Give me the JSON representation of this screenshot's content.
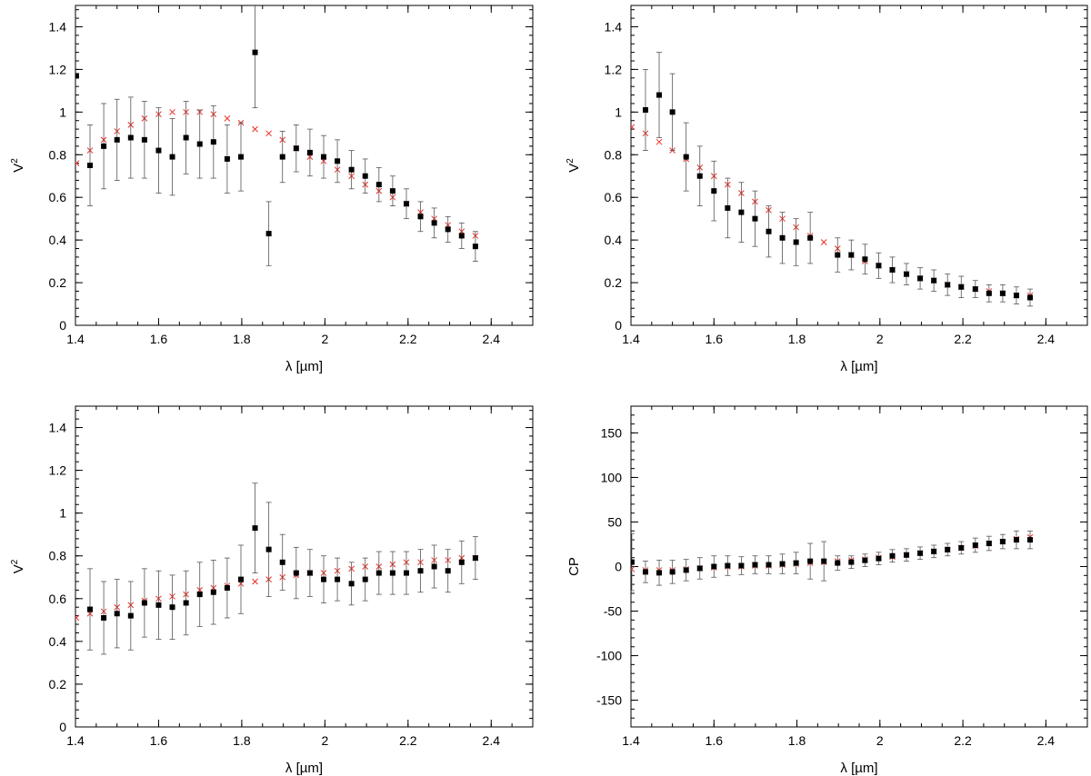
{
  "chart_data": [
    {
      "type": "scatter",
      "xlabel": "λ [µm]",
      "ylabel": "V",
      "ylabel_sup": "2",
      "xlim": [
        1.4,
        2.5
      ],
      "ylim": [
        0,
        1.5
      ],
      "xticks": [
        1.4,
        1.6,
        1.8,
        2,
        2.2,
        2.4
      ],
      "yticks": [
        0,
        0.2,
        0.4,
        0.6,
        0.8,
        1,
        1.2,
        1.4
      ],
      "grid": false,
      "series": [
        {
          "marker": "square",
          "color": "#000000",
          "x": [
            1.402,
            1.435,
            1.468,
            1.5,
            1.533,
            1.566,
            1.6,
            1.633,
            1.666,
            1.699,
            1.732,
            1.765,
            1.798,
            1.832,
            1.865,
            1.898,
            1.931,
            1.964,
            1.997,
            2.03,
            2.064,
            2.097,
            2.13,
            2.163,
            2.196,
            2.23,
            2.263,
            2.296,
            2.329,
            2.362
          ],
          "y": [
            1.17,
            0.75,
            0.84,
            0.87,
            0.88,
            0.87,
            0.82,
            0.79,
            0.88,
            0.85,
            0.86,
            0.78,
            0.79,
            1.28,
            0.43,
            0.79,
            0.83,
            0.81,
            0.79,
            0.77,
            0.73,
            0.7,
            0.66,
            0.63,
            0.57,
            0.51,
            0.48,
            0.45,
            0.42,
            0.37
          ],
          "err": [
            0.0,
            0.19,
            0.2,
            0.19,
            0.19,
            0.18,
            0.2,
            0.18,
            0.17,
            0.16,
            0.17,
            0.16,
            0.16,
            0.26,
            0.15,
            0.12,
            0.11,
            0.11,
            0.1,
            0.1,
            0.09,
            0.08,
            0.08,
            0.07,
            0.07,
            0.07,
            0.07,
            0.06,
            0.06,
            0.07
          ]
        },
        {
          "marker": "cross",
          "color": "#e8302a",
          "x": [
            1.402,
            1.435,
            1.468,
            1.5,
            1.533,
            1.566,
            1.6,
            1.633,
            1.666,
            1.699,
            1.732,
            1.765,
            1.798,
            1.832,
            1.865,
            1.898,
            1.931,
            1.964,
            1.997,
            2.03,
            2.064,
            2.097,
            2.13,
            2.163,
            2.196,
            2.23,
            2.263,
            2.296,
            2.329,
            2.362
          ],
          "y": [
            0.76,
            0.82,
            0.87,
            0.91,
            0.94,
            0.97,
            0.99,
            1.0,
            1.0,
            1.0,
            0.99,
            0.97,
            0.95,
            0.92,
            0.9,
            0.87,
            0.83,
            0.79,
            0.77,
            0.73,
            0.7,
            0.66,
            0.63,
            0.6,
            0.57,
            0.53,
            0.5,
            0.47,
            0.44,
            0.42
          ]
        }
      ]
    },
    {
      "type": "scatter",
      "xlabel": "λ [µm]",
      "ylabel": "V",
      "ylabel_sup": "2",
      "xlim": [
        1.4,
        2.5
      ],
      "ylim": [
        0,
        1.5
      ],
      "xticks": [
        1.4,
        1.6,
        1.8,
        2,
        2.2,
        2.4
      ],
      "yticks": [
        0,
        0.2,
        0.4,
        0.6,
        0.8,
        1,
        1.2,
        1.4
      ],
      "grid": false,
      "series": [
        {
          "marker": "square",
          "color": "#000000",
          "x": [
            1.435,
            1.468,
            1.5,
            1.533,
            1.566,
            1.6,
            1.633,
            1.666,
            1.699,
            1.732,
            1.765,
            1.798,
            1.832,
            1.898,
            1.931,
            1.964,
            1.997,
            2.03,
            2.064,
            2.097,
            2.13,
            2.163,
            2.196,
            2.23,
            2.263,
            2.296,
            2.329,
            2.362
          ],
          "y": [
            1.01,
            1.08,
            1.0,
            0.79,
            0.7,
            0.63,
            0.55,
            0.53,
            0.5,
            0.44,
            0.41,
            0.39,
            0.41,
            0.33,
            0.33,
            0.31,
            0.28,
            0.26,
            0.24,
            0.22,
            0.21,
            0.19,
            0.18,
            0.17,
            0.15,
            0.15,
            0.14,
            0.13
          ],
          "err": [
            0.19,
            0.2,
            0.18,
            0.16,
            0.14,
            0.14,
            0.14,
            0.14,
            0.13,
            0.12,
            0.12,
            0.11,
            0.12,
            0.08,
            0.07,
            0.07,
            0.06,
            0.06,
            0.05,
            0.05,
            0.05,
            0.05,
            0.05,
            0.04,
            0.04,
            0.04,
            0.04,
            0.04
          ]
        },
        {
          "marker": "cross",
          "color": "#e8302a",
          "x": [
            1.402,
            1.435,
            1.468,
            1.5,
            1.533,
            1.566,
            1.6,
            1.633,
            1.666,
            1.699,
            1.732,
            1.765,
            1.798,
            1.832,
            1.865,
            1.898,
            1.931,
            1.964,
            1.997,
            2.03,
            2.064,
            2.097,
            2.13,
            2.163,
            2.196,
            2.23,
            2.263,
            2.296,
            2.329,
            2.362
          ],
          "y": [
            0.93,
            0.9,
            0.86,
            0.82,
            0.78,
            0.74,
            0.7,
            0.66,
            0.62,
            0.58,
            0.54,
            0.5,
            0.46,
            0.42,
            0.39,
            0.36,
            0.33,
            0.3,
            0.28,
            0.26,
            0.24,
            0.22,
            0.21,
            0.19,
            0.18,
            0.17,
            0.16,
            0.15,
            0.14,
            0.14
          ]
        }
      ]
    },
    {
      "type": "scatter",
      "xlabel": "λ [µm]",
      "ylabel": "V",
      "ylabel_sup": "2",
      "xlim": [
        1.4,
        2.5
      ],
      "ylim": [
        0,
        1.5
      ],
      "xticks": [
        1.4,
        1.6,
        1.8,
        2,
        2.2,
        2.4
      ],
      "yticks": [
        0,
        0.2,
        0.4,
        0.6,
        0.8,
        1,
        1.2,
        1.4
      ],
      "grid": false,
      "series": [
        {
          "marker": "square",
          "color": "#000000",
          "x": [
            1.435,
            1.468,
            1.5,
            1.533,
            1.566,
            1.6,
            1.633,
            1.666,
            1.699,
            1.732,
            1.765,
            1.798,
            1.832,
            1.865,
            1.898,
            1.931,
            1.964,
            1.997,
            2.03,
            2.064,
            2.097,
            2.13,
            2.163,
            2.196,
            2.23,
            2.263,
            2.296,
            2.329,
            2.362
          ],
          "y": [
            0.55,
            0.51,
            0.53,
            0.52,
            0.58,
            0.57,
            0.56,
            0.58,
            0.62,
            0.63,
            0.65,
            0.69,
            0.93,
            0.83,
            0.77,
            0.72,
            0.72,
            0.69,
            0.69,
            0.67,
            0.69,
            0.72,
            0.72,
            0.72,
            0.73,
            0.75,
            0.73,
            0.77,
            0.79
          ],
          "err": [
            0.19,
            0.17,
            0.16,
            0.16,
            0.16,
            0.16,
            0.15,
            0.15,
            0.15,
            0.15,
            0.14,
            0.16,
            0.21,
            0.22,
            0.13,
            0.12,
            0.11,
            0.11,
            0.1,
            0.1,
            0.1,
            0.1,
            0.1,
            0.1,
            0.1,
            0.1,
            0.1,
            0.1,
            0.1
          ]
        },
        {
          "marker": "cross",
          "color": "#e8302a",
          "x": [
            1.402,
            1.435,
            1.468,
            1.5,
            1.533,
            1.566,
            1.6,
            1.633,
            1.666,
            1.699,
            1.732,
            1.765,
            1.798,
            1.832,
            1.865,
            1.898,
            1.931,
            1.964,
            1.997,
            2.03,
            2.064,
            2.097,
            2.13,
            2.163,
            2.196,
            2.23,
            2.263,
            2.296,
            2.329,
            2.362
          ],
          "y": [
            0.51,
            0.53,
            0.54,
            0.56,
            0.57,
            0.59,
            0.6,
            0.61,
            0.62,
            0.64,
            0.65,
            0.66,
            0.67,
            0.68,
            0.69,
            0.7,
            0.71,
            0.72,
            0.72,
            0.73,
            0.74,
            0.75,
            0.75,
            0.76,
            0.77,
            0.77,
            0.78,
            0.78,
            0.79,
            0.79
          ]
        }
      ]
    },
    {
      "type": "scatter",
      "xlabel": "λ [µm]",
      "ylabel": "CP",
      "ylabel_sup": "",
      "xlim": [
        1.4,
        2.5
      ],
      "ylim": [
        -180,
        180
      ],
      "xticks": [
        1.4,
        1.6,
        1.8,
        2,
        2.2,
        2.4
      ],
      "yticks": [
        -150,
        -100,
        -50,
        0,
        50,
        100,
        150
      ],
      "grid": false,
      "series": [
        {
          "marker": "square",
          "color": "#000000",
          "x": [
            1.402,
            1.435,
            1.468,
            1.5,
            1.533,
            1.566,
            1.6,
            1.633,
            1.666,
            1.699,
            1.732,
            1.765,
            1.798,
            1.832,
            1.865,
            1.898,
            1.931,
            1.964,
            1.997,
            2.03,
            2.064,
            2.097,
            2.13,
            2.163,
            2.196,
            2.23,
            2.263,
            2.296,
            2.329,
            2.362
          ],
          "y": [
            5,
            -6,
            -7,
            -6,
            -4,
            -2,
            0,
            1,
            1,
            2,
            2,
            3,
            4,
            6,
            6,
            4,
            5,
            7,
            9,
            12,
            13,
            15,
            17,
            19,
            21,
            24,
            26,
            28,
            30,
            30
          ],
          "err": [
            32,
            12,
            14,
            13,
            12,
            12,
            12,
            11,
            10,
            10,
            10,
            11,
            12,
            20,
            22,
            8,
            7,
            7,
            7,
            7,
            7,
            7,
            7,
            7,
            7,
            8,
            8,
            8,
            10,
            10
          ]
        },
        {
          "marker": "cross",
          "color": "#e8302a",
          "x": [
            1.402,
            1.435,
            1.468,
            1.5,
            1.533,
            1.566,
            1.6,
            1.633,
            1.666,
            1.699,
            1.732,
            1.765,
            1.798,
            1.832,
            1.865,
            1.898,
            1.931,
            1.964,
            1.997,
            2.03,
            2.064,
            2.097,
            2.13,
            2.163,
            2.196,
            2.23,
            2.263,
            2.296,
            2.329,
            2.362
          ],
          "y": [
            -3,
            -4,
            -4,
            -4,
            -3,
            -2,
            -1,
            0,
            0,
            1,
            1,
            2,
            3,
            4,
            5,
            6,
            7,
            8,
            10,
            11,
            13,
            15,
            17,
            19,
            21,
            23,
            26,
            28,
            31,
            33
          ]
        }
      ]
    }
  ]
}
